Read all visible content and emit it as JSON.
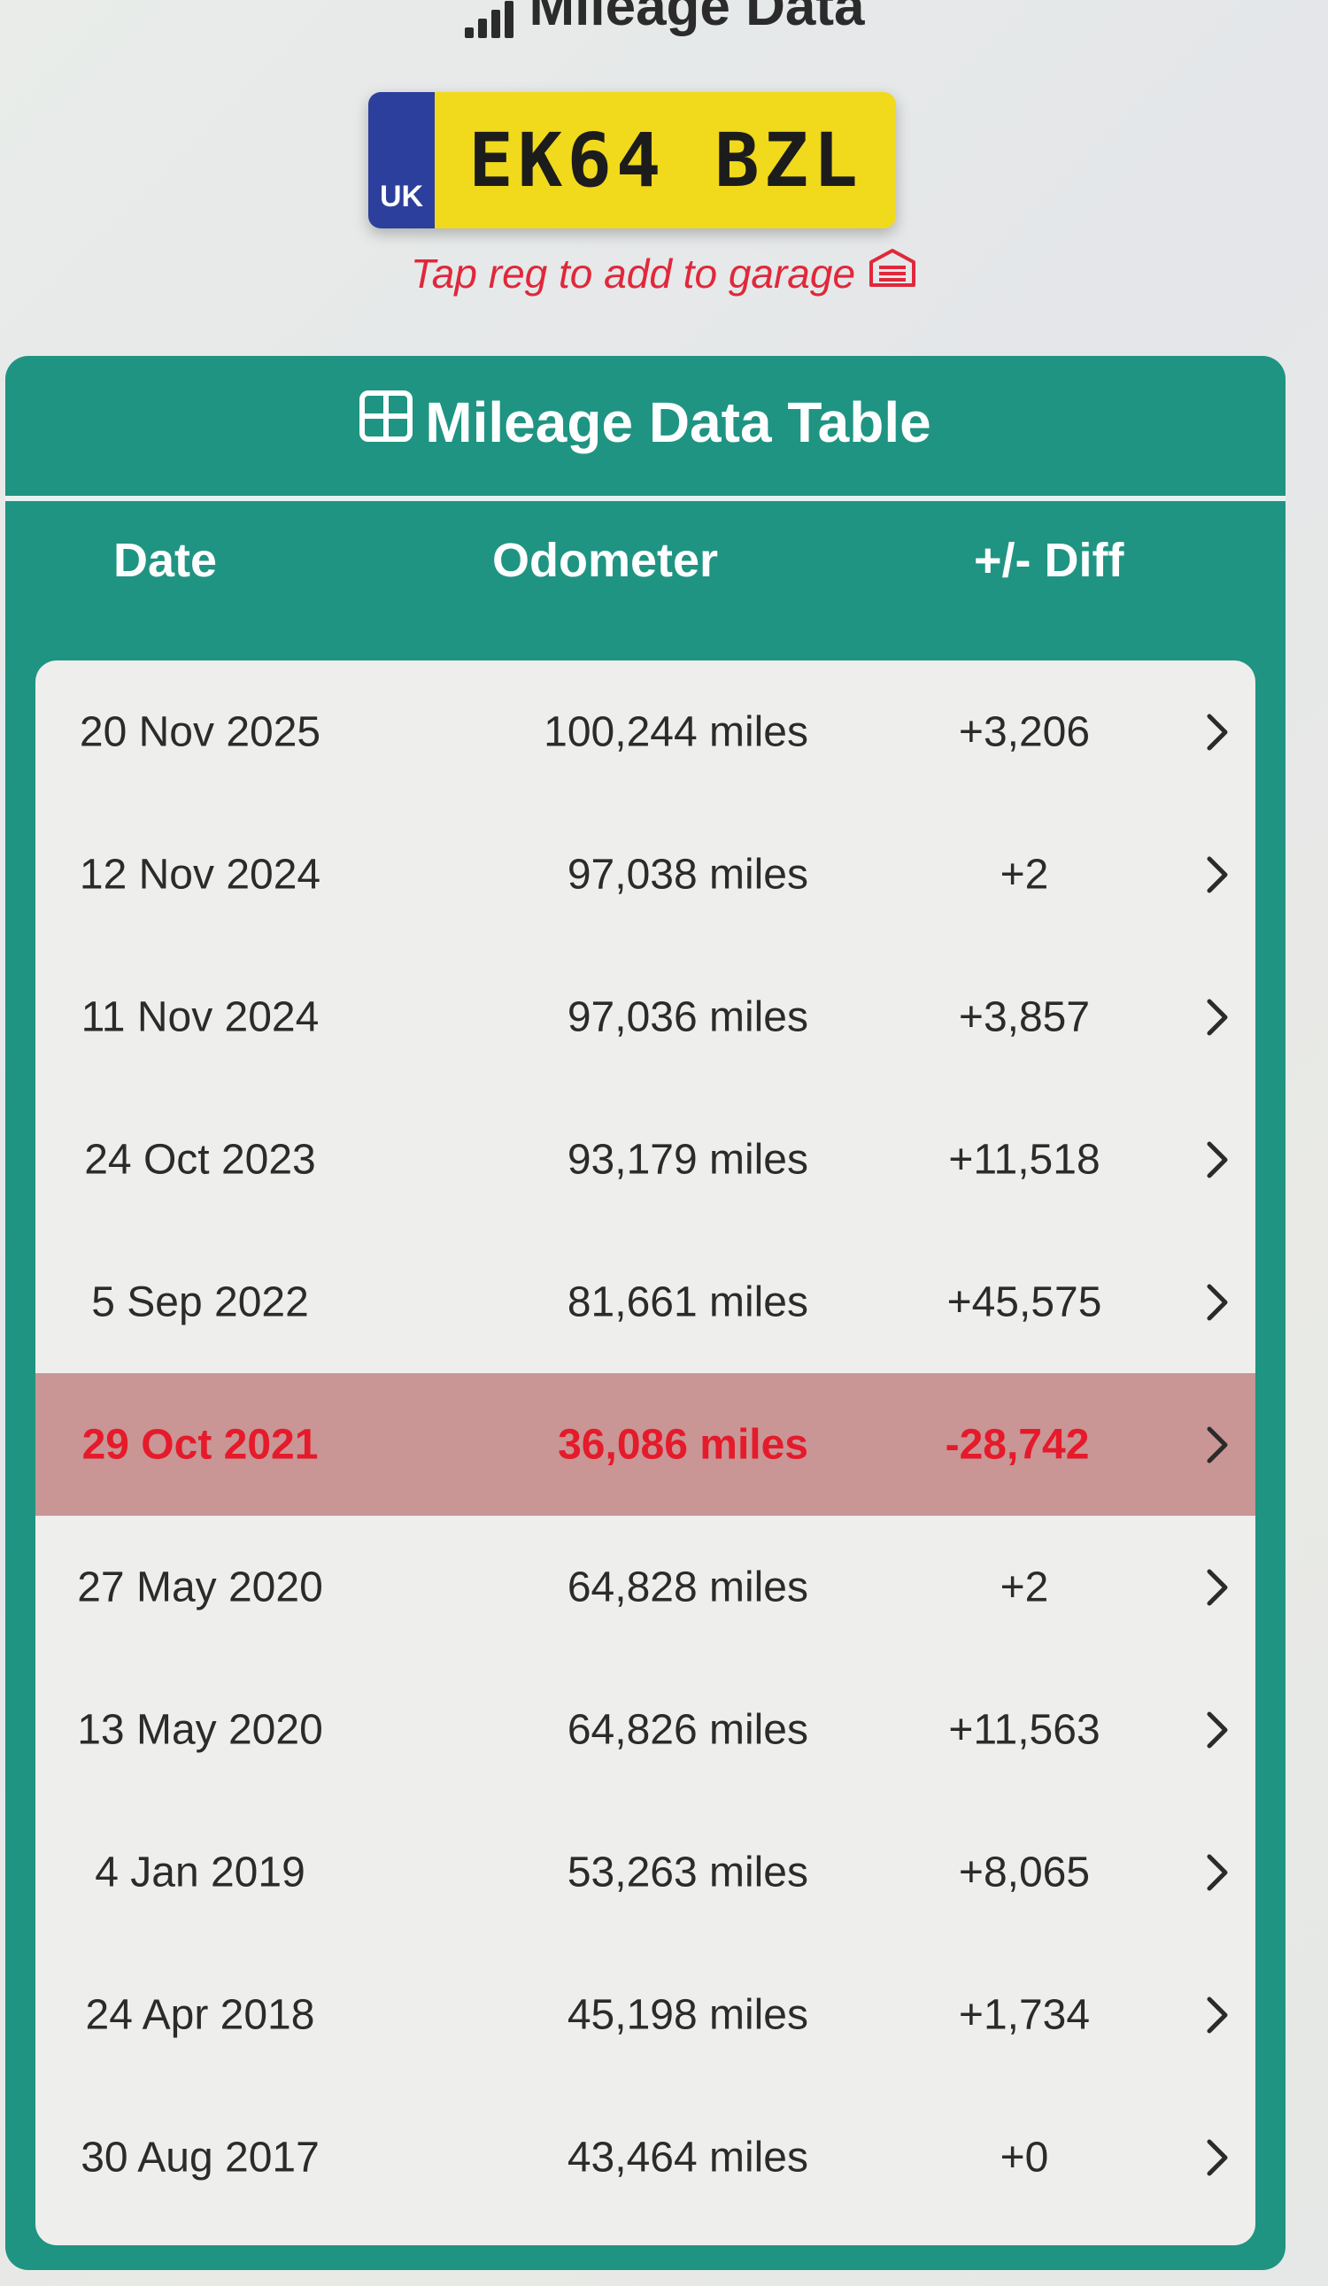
{
  "header": {
    "title": "Mileage Data",
    "icon": "signal-bars-icon"
  },
  "plate": {
    "country": "UK",
    "registration": "EK64 BZL",
    "colors": {
      "flag": "#2d3f9c",
      "plate": "#f1d91c"
    }
  },
  "hint": {
    "text": "Tap reg to add to garage",
    "icon": "garage-icon",
    "color": "#e0283a"
  },
  "table": {
    "title": "Mileage Data Table",
    "icon": "table-grid-icon",
    "columns": {
      "date": "Date",
      "odometer": "Odometer",
      "diff": "+/- Diff"
    },
    "accent_color": "#1f9482",
    "flag_color": "#e51a2a",
    "rows": [
      {
        "date": "20 Nov 2025",
        "odometer": "100,244 miles",
        "diff": "+3,206",
        "flagged": false
      },
      {
        "date": "12 Nov 2024",
        "odometer": "97,038 miles",
        "diff": "+2",
        "flagged": false
      },
      {
        "date": "11 Nov 2024",
        "odometer": "97,036 miles",
        "diff": "+3,857",
        "flagged": false
      },
      {
        "date": "24 Oct 2023",
        "odometer": "93,179 miles",
        "diff": "+11,518",
        "flagged": false
      },
      {
        "date": "5 Sep 2022",
        "odometer": "81,661 miles",
        "diff": "+45,575",
        "flagged": false
      },
      {
        "date": "29 Oct 2021",
        "odometer": "36,086 miles",
        "diff": "-28,742",
        "flagged": true
      },
      {
        "date": "27 May 2020",
        "odometer": "64,828 miles",
        "diff": "+2",
        "flagged": false
      },
      {
        "date": "13 May 2020",
        "odometer": "64,826 miles",
        "diff": "+11,563",
        "flagged": false
      },
      {
        "date": "4 Jan 2019",
        "odometer": "53,263 miles",
        "diff": "+8,065",
        "flagged": false
      },
      {
        "date": "24 Apr 2018",
        "odometer": "45,198 miles",
        "diff": "+1,734",
        "flagged": false
      },
      {
        "date": "30 Aug 2017",
        "odometer": "43,464 miles",
        "diff": "+0",
        "flagged": false
      }
    ]
  }
}
